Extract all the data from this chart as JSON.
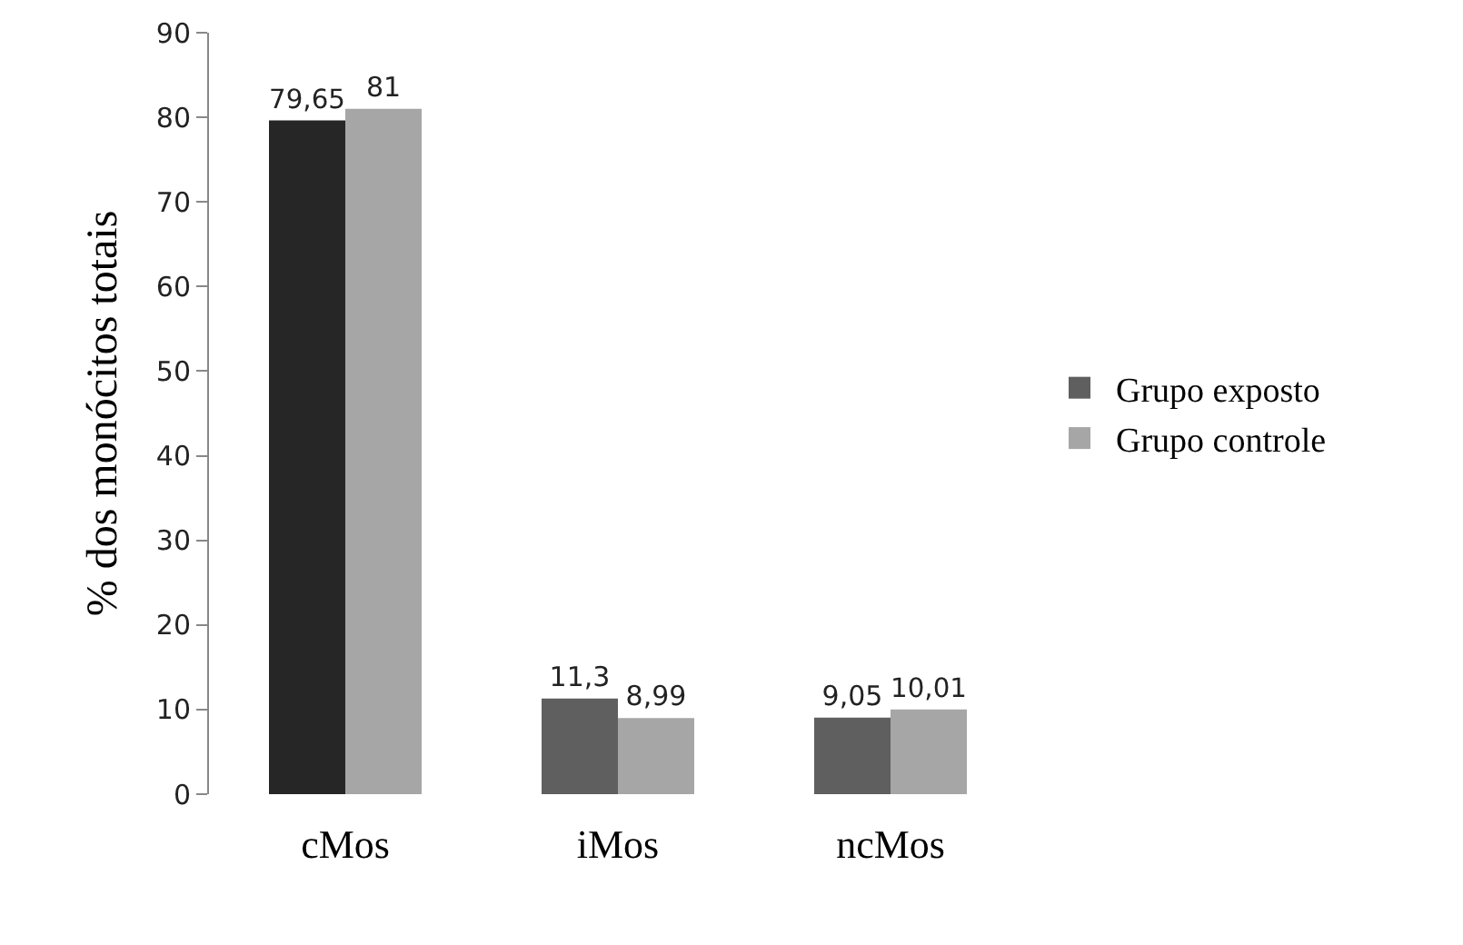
{
  "chart_data": {
    "type": "bar",
    "ylabel": "% dos monócitos totais",
    "categories": [
      "cMos",
      "iMos",
      "ncMos"
    ],
    "series": [
      {
        "name": "Grupo exposto",
        "color": "#5f5f5f",
        "colors": [
          "#262626",
          "#5f5f5f",
          "#5f5f5f"
        ],
        "values": [
          79.65,
          11.3,
          9.05
        ],
        "value_labels": [
          "79,65",
          "11,3",
          "9,05"
        ]
      },
      {
        "name": "Grupo controle",
        "color": "#a6a6a6",
        "values": [
          81,
          8.99,
          10.01
        ],
        "value_labels": [
          "81",
          "8,99",
          "10,01"
        ]
      }
    ],
    "ylim": [
      0,
      90
    ],
    "yticks": [
      0,
      10,
      20,
      30,
      40,
      50,
      60,
      70,
      80,
      90
    ],
    "grid": false,
    "legend": "right"
  }
}
